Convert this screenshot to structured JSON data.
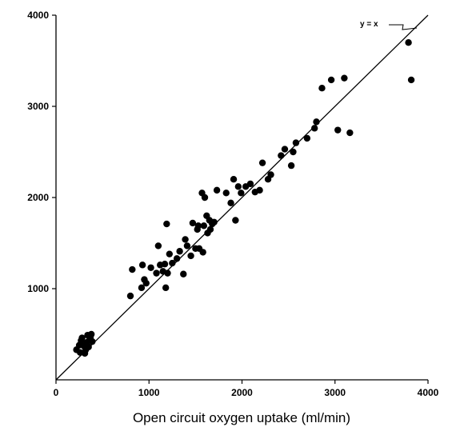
{
  "chart_data": {
    "type": "scatter",
    "title": "",
    "xlabel": "Open circuit oxygen uptake (ml/min)",
    "ylabel": "",
    "xlim": [
      0,
      4000
    ],
    "ylim": [
      0,
      4000
    ],
    "x_ticks": [
      0,
      1000,
      2000,
      3000,
      4000
    ],
    "y_ticks": [
      1000,
      2000,
      3000,
      4000
    ],
    "grid": false,
    "point_color": "#000000",
    "reference_line": {
      "label": "y = x",
      "from": [
        0,
        0
      ],
      "to": [
        4000,
        4000
      ]
    },
    "points": [
      [
        220,
        330
      ],
      [
        250,
        380
      ],
      [
        260,
        300
      ],
      [
        270,
        430
      ],
      [
        280,
        460
      ],
      [
        300,
        370
      ],
      [
        310,
        290
      ],
      [
        320,
        330
      ],
      [
        330,
        410
      ],
      [
        340,
        490
      ],
      [
        350,
        360
      ],
      [
        360,
        440
      ],
      [
        370,
        470
      ],
      [
        380,
        500
      ],
      [
        390,
        420
      ],
      [
        800,
        920
      ],
      [
        820,
        1210
      ],
      [
        920,
        1010
      ],
      [
        930,
        1260
      ],
      [
        950,
        1100
      ],
      [
        970,
        1060
      ],
      [
        1020,
        1230
      ],
      [
        1080,
        1170
      ],
      [
        1100,
        1470
      ],
      [
        1120,
        1260
      ],
      [
        1150,
        1190
      ],
      [
        1170,
        1270
      ],
      [
        1180,
        1010
      ],
      [
        1190,
        1710
      ],
      [
        1200,
        1170
      ],
      [
        1220,
        1380
      ],
      [
        1250,
        1280
      ],
      [
        1300,
        1330
      ],
      [
        1330,
        1410
      ],
      [
        1370,
        1160
      ],
      [
        1390,
        1540
      ],
      [
        1410,
        1470
      ],
      [
        1450,
        1360
      ],
      [
        1470,
        1720
      ],
      [
        1500,
        1440
      ],
      [
        1520,
        1650
      ],
      [
        1530,
        1690
      ],
      [
        1540,
        1440
      ],
      [
        1570,
        2050
      ],
      [
        1580,
        1400
      ],
      [
        1590,
        1690
      ],
      [
        1600,
        2000
      ],
      [
        1620,
        1800
      ],
      [
        1630,
        1610
      ],
      [
        1650,
        1750
      ],
      [
        1660,
        1650
      ],
      [
        1680,
        1710
      ],
      [
        1700,
        1730
      ],
      [
        1730,
        2080
      ],
      [
        1830,
        2050
      ],
      [
        1880,
        1940
      ],
      [
        1910,
        2200
      ],
      [
        1930,
        1750
      ],
      [
        1960,
        2120
      ],
      [
        1990,
        2050
      ],
      [
        2040,
        2120
      ],
      [
        2090,
        2150
      ],
      [
        2140,
        2060
      ],
      [
        2190,
        2080
      ],
      [
        2220,
        2380
      ],
      [
        2280,
        2200
      ],
      [
        2310,
        2250
      ],
      [
        2420,
        2460
      ],
      [
        2460,
        2530
      ],
      [
        2530,
        2350
      ],
      [
        2550,
        2500
      ],
      [
        2580,
        2600
      ],
      [
        2700,
        2650
      ],
      [
        2780,
        2760
      ],
      [
        2800,
        2830
      ],
      [
        2860,
        3200
      ],
      [
        2960,
        3290
      ],
      [
        3030,
        2740
      ],
      [
        3100,
        3310
      ],
      [
        3160,
        2710
      ],
      [
        3790,
        3700
      ],
      [
        3820,
        3290
      ]
    ]
  }
}
